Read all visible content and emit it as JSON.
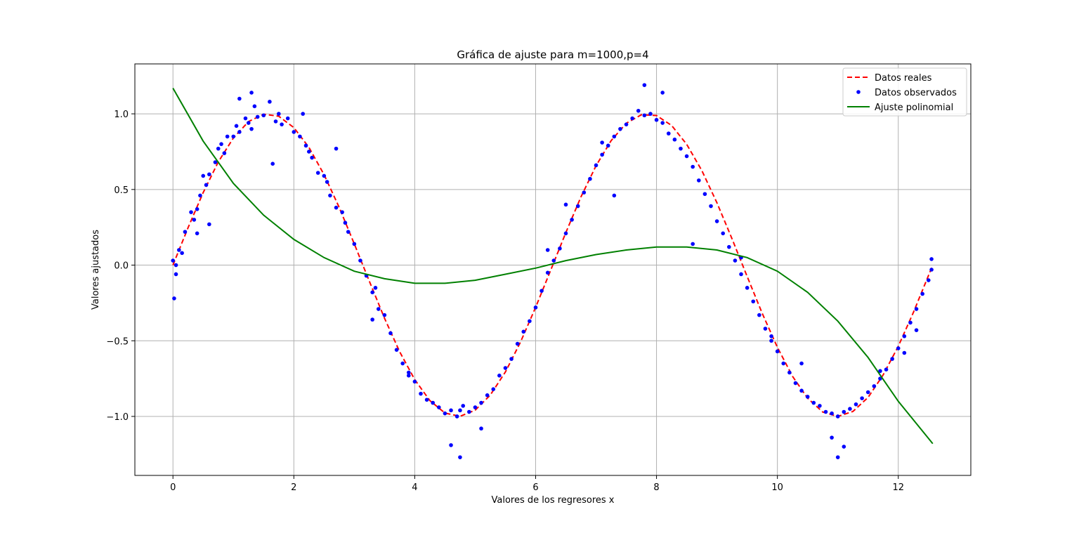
{
  "chart_data": {
    "type": "scatter",
    "title": "Gráfica de ajuste para m=1000,p=4",
    "xlabel": "Valores de los regresores x",
    "ylabel": "Valores ajustados",
    "xlim": [
      -0.63,
      13.2
    ],
    "ylim": [
      -1.39,
      1.33
    ],
    "xticks": [
      0,
      2,
      4,
      6,
      8,
      10,
      12
    ],
    "xtick_labels": [
      "0",
      "2",
      "4",
      "6",
      "8",
      "10",
      "12"
    ],
    "yticks": [
      -1.0,
      -0.5,
      0.0,
      0.5,
      1.0
    ],
    "ytick_labels": [
      "−1.0",
      "−0.5",
      "0.0",
      "0.5",
      "1.0"
    ],
    "grid": true,
    "legend_position": "top-right",
    "series": [
      {
        "name": "Datos reales",
        "type": "line",
        "style": "dashed",
        "color": "#ff0000",
        "x": [
          0,
          0.25,
          0.5,
          0.75,
          1.0,
          1.25,
          1.5,
          1.75,
          2.0,
          2.25,
          2.5,
          2.75,
          3.0,
          3.25,
          3.5,
          3.75,
          4.0,
          4.25,
          4.5,
          4.75,
          5.0,
          5.25,
          5.5,
          5.75,
          6.0,
          6.25,
          6.5,
          6.75,
          7.0,
          7.25,
          7.5,
          7.75,
          8.0,
          8.25,
          8.5,
          8.75,
          9.0,
          9.25,
          9.5,
          9.75,
          10.0,
          10.25,
          10.5,
          10.75,
          11.0,
          11.25,
          11.5,
          11.75,
          12.0,
          12.25,
          12.57
        ],
        "y": [
          0.0,
          0.247,
          0.479,
          0.682,
          0.841,
          0.949,
          0.997,
          0.984,
          0.909,
          0.778,
          0.598,
          0.382,
          0.141,
          -0.108,
          -0.351,
          -0.572,
          -0.757,
          -0.895,
          -0.978,
          -0.999,
          -0.959,
          -0.859,
          -0.706,
          -0.508,
          -0.279,
          -0.033,
          0.215,
          0.451,
          0.657,
          0.823,
          0.938,
          0.994,
          0.989,
          0.923,
          0.798,
          0.625,
          0.412,
          0.174,
          -0.075,
          -0.319,
          -0.544,
          -0.735,
          -0.88,
          -0.971,
          -1.0,
          -0.967,
          -0.875,
          -0.726,
          -0.537,
          -0.312,
          0.0
        ]
      },
      {
        "name": "Datos observados",
        "type": "scatter",
        "color": "#0000ff",
        "x": [
          0.0,
          0.05,
          0.1,
          0.15,
          0.2,
          0.3,
          0.35,
          0.4,
          0.45,
          0.5,
          0.55,
          0.6,
          0.7,
          0.75,
          0.8,
          0.85,
          0.9,
          1.0,
          1.05,
          1.1,
          1.2,
          1.25,
          1.3,
          1.35,
          1.4,
          1.5,
          1.6,
          1.7,
          1.75,
          1.8,
          1.9,
          2.0,
          2.1,
          2.2,
          2.25,
          2.3,
          2.4,
          2.5,
          2.55,
          2.6,
          2.7,
          2.8,
          2.85,
          2.9,
          3.0,
          3.1,
          3.2,
          3.3,
          3.35,
          3.4,
          3.5,
          3.6,
          3.7,
          3.8,
          3.9,
          4.0,
          4.1,
          4.2,
          4.3,
          4.4,
          4.5,
          4.6,
          4.7,
          4.75,
          4.8,
          4.9,
          5.0,
          5.1,
          5.2,
          5.3,
          5.4,
          5.5,
          5.6,
          5.7,
          5.8,
          5.9,
          6.0,
          6.1,
          6.2,
          6.3,
          6.4,
          6.5,
          6.6,
          6.7,
          6.8,
          6.9,
          7.0,
          7.1,
          7.2,
          7.3,
          7.4,
          7.5,
          7.6,
          7.7,
          7.8,
          7.9,
          8.0,
          8.1,
          8.2,
          8.3,
          8.4,
          8.5,
          8.6,
          8.7,
          8.8,
          8.9,
          9.0,
          9.1,
          9.2,
          9.3,
          9.4,
          9.5,
          9.6,
          9.7,
          9.8,
          9.9,
          10.0,
          10.1,
          10.2,
          10.3,
          10.4,
          10.5,
          10.6,
          10.7,
          10.8,
          10.9,
          11.0,
          11.1,
          11.2,
          11.3,
          11.4,
          11.5,
          11.6,
          11.7,
          11.8,
          11.9,
          12.0,
          12.1,
          12.2,
          12.3,
          12.4,
          12.5,
          12.55,
          0.02,
          0.6,
          1.3,
          2.15,
          3.3,
          4.6,
          4.75,
          6.2,
          7.3,
          7.8,
          8.1,
          9.4,
          10.4,
          11.0,
          11.1,
          11.7,
          12.3,
          12.55,
          0.05,
          0.4,
          1.1,
          1.65,
          2.7,
          3.9,
          5.1,
          6.5,
          7.1,
          8.6,
          9.9,
          10.9,
          12.1
        ],
        "y": [
          0.03,
          -0.06,
          0.1,
          0.08,
          0.22,
          0.35,
          0.3,
          0.37,
          0.46,
          0.59,
          0.53,
          0.6,
          0.68,
          0.77,
          0.8,
          0.74,
          0.85,
          0.85,
          0.92,
          0.88,
          0.97,
          0.94,
          0.9,
          1.05,
          0.98,
          0.99,
          1.08,
          0.95,
          1.0,
          0.93,
          0.97,
          0.88,
          0.85,
          0.79,
          0.75,
          0.71,
          0.61,
          0.59,
          0.55,
          0.46,
          0.38,
          0.35,
          0.28,
          0.22,
          0.14,
          0.03,
          -0.07,
          -0.18,
          -0.15,
          -0.29,
          -0.33,
          -0.45,
          -0.56,
          -0.65,
          -0.71,
          -0.77,
          -0.85,
          -0.89,
          -0.91,
          -0.94,
          -0.98,
          -0.96,
          -1.0,
          -0.96,
          -0.93,
          -0.97,
          -0.94,
          -0.91,
          -0.86,
          -0.82,
          -0.73,
          -0.68,
          -0.62,
          -0.52,
          -0.44,
          -0.37,
          -0.28,
          -0.17,
          -0.05,
          0.03,
          0.11,
          0.21,
          0.3,
          0.39,
          0.48,
          0.57,
          0.66,
          0.73,
          0.79,
          0.85,
          0.9,
          0.93,
          0.97,
          1.02,
          0.99,
          1.0,
          0.96,
          0.94,
          0.87,
          0.83,
          0.77,
          0.72,
          0.65,
          0.56,
          0.47,
          0.39,
          0.29,
          0.21,
          0.12,
          0.03,
          -0.06,
          -0.15,
          -0.24,
          -0.33,
          -0.42,
          -0.5,
          -0.57,
          -0.65,
          -0.71,
          -0.78,
          -0.83,
          -0.87,
          -0.91,
          -0.93,
          -0.97,
          -0.98,
          -1.0,
          -0.97,
          -0.95,
          -0.92,
          -0.88,
          -0.84,
          -0.8,
          -0.75,
          -0.69,
          -0.62,
          -0.55,
          -0.47,
          -0.38,
          -0.29,
          -0.19,
          -0.1,
          -0.03,
          -0.22,
          0.27,
          1.14,
          1.0,
          -0.36,
          -1.19,
          -1.27,
          0.1,
          0.46,
          1.19,
          1.14,
          0.05,
          -0.65,
          -1.27,
          -1.2,
          -0.7,
          -0.43,
          0.04,
          0.0,
          0.21,
          1.1,
          0.67,
          0.77,
          -0.73,
          -1.08,
          0.4,
          0.81,
          0.14,
          -0.47,
          -1.14,
          -0.58
        ]
      },
      {
        "name": "Ajuste polinomial",
        "type": "line",
        "style": "solid",
        "color": "#008000",
        "x": [
          0,
          0.5,
          1.0,
          1.5,
          2.0,
          2.5,
          3.0,
          3.5,
          4.0,
          4.5,
          5.0,
          5.5,
          6.0,
          6.5,
          7.0,
          7.5,
          8.0,
          8.5,
          9.0,
          9.5,
          10.0,
          10.5,
          11.0,
          11.5,
          12.0,
          12.57
        ],
        "y": [
          1.17,
          0.82,
          0.54,
          0.33,
          0.17,
          0.05,
          -0.04,
          -0.09,
          -0.12,
          -0.12,
          -0.1,
          -0.06,
          -0.02,
          0.03,
          0.07,
          0.1,
          0.12,
          0.12,
          0.1,
          0.05,
          -0.04,
          -0.18,
          -0.37,
          -0.61,
          -0.9,
          -1.18
        ]
      }
    ]
  }
}
